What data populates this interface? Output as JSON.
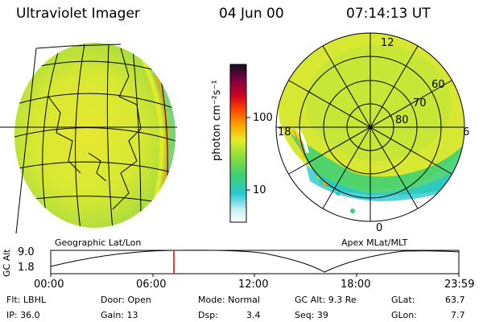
{
  "header": {
    "instrument": "Ultraviolet Imager",
    "date": "04 Jun 00",
    "time": "07:14:13 UT"
  },
  "panels": {
    "left_label": "Geographic Lat/Lon",
    "right_label": "Apex MLat/MLT"
  },
  "colorbar": {
    "unit_label": "photon cm⁻²s⁻¹",
    "tick_labels": [
      "100",
      "10"
    ],
    "scale": "log"
  },
  "polar_plot": {
    "mlt_labels": [
      "12",
      "18",
      "6",
      "0"
    ],
    "mlat_labels": [
      "60",
      "70",
      "80"
    ]
  },
  "altitude_strip": {
    "y_label": "GC Alt",
    "y_ticks": [
      "9.0",
      "1.8"
    ],
    "x_ticks": [
      "00:00",
      "06:00",
      "12:00",
      "18:00",
      "23:59"
    ],
    "marker_time_hours": 7.237,
    "marker_color": "#e00000"
  },
  "info": {
    "filter": "Flt: LBHL",
    "door": "Door: Open",
    "mode": "Mode: Normal",
    "gc_alt": "GC Alt: 9.3 Re",
    "glat_label": "GLat:",
    "glat_value": "63.7",
    "ip": "IP: 36.0",
    "gain": "Gain: 13",
    "dsp_label": "Dsp:",
    "dsp_value": "3.4",
    "seq": "Seq: 39",
    "glon_label": "GLon:",
    "glon_value": "7.7"
  },
  "colors": {
    "aurora_yellow": "#e8ec28",
    "aurora_green": "#90dc3c",
    "aurora_cyan": "#28c8d0",
    "aurora_orange": "#ffa000"
  }
}
